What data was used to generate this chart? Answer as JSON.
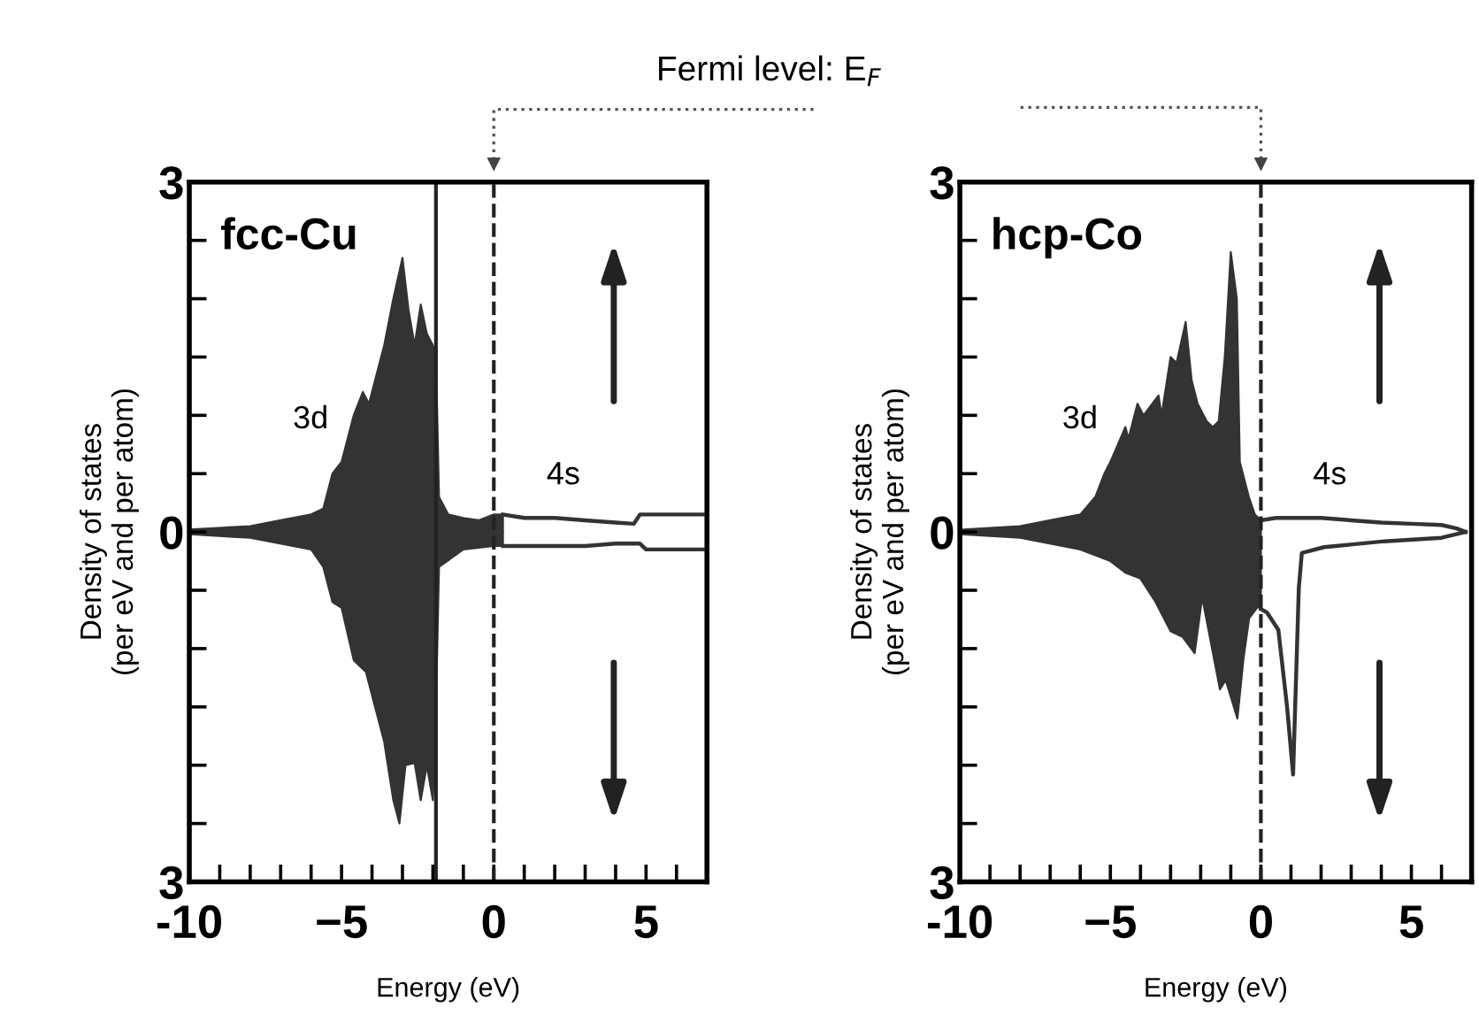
{
  "chart_data": [
    {
      "type": "area",
      "title": "fcc-Cu",
      "xlabel": "Energy (eV)",
      "ylabel": "Density of states\n(per eV and per atom)",
      "xlim": [
        -10,
        7
      ],
      "ylim": [
        -3,
        3
      ],
      "xticks": [
        -10,
        {
          "value": -9,
          "label": null
        },
        {
          "value": -8,
          "label": null
        },
        {
          "value": -7,
          "label": null
        },
        {
          "value": -6,
          "label": null
        },
        {
          "value": -5,
          "label": "−5"
        },
        {
          "value": -4,
          "label": null
        },
        {
          "value": -3,
          "label": null
        },
        {
          "value": -2,
          "label": null
        },
        {
          "value": -1,
          "label": null
        },
        0,
        {
          "value": 1,
          "label": null
        },
        {
          "value": 2,
          "label": null
        },
        {
          "value": 3,
          "label": null
        },
        {
          "value": 4,
          "label": null
        },
        5,
        {
          "value": 6,
          "label": null
        }
      ],
      "yticks": [
        {
          "value": -3,
          "label": "3"
        },
        {
          "value": -2.5,
          "label": null
        },
        {
          "value": -2,
          "label": null
        },
        {
          "value": -1.5,
          "label": null
        },
        {
          "value": -1,
          "label": null
        },
        {
          "value": -0.5,
          "label": null
        },
        0,
        {
          "value": 0.5,
          "label": null
        },
        {
          "value": 1,
          "label": null
        },
        {
          "value": 1.5,
          "label": null
        },
        {
          "value": 2,
          "label": null
        },
        {
          "value": 2.5,
          "label": null
        },
        3
      ],
      "grid": false,
      "ref_lines": [
        {
          "axis": "x",
          "value": -1.9,
          "line_style": "solid",
          "color": "#222222"
        },
        {
          "axis": "x",
          "value": 0,
          "line_style": "dashed",
          "color": "#222222"
        }
      ],
      "annotations": [
        "Fermi level: E$_{F}$",
        "3d",
        "4s"
      ],
      "series": [
        {
          "color": "#333333",
          "x": [
            -10,
            -8,
            -7,
            -6,
            -5.6,
            -5.3,
            -5,
            -4.6,
            -4.3,
            -4.1,
            -3.9,
            -3.6,
            -3.3,
            -3.0,
            -2.8,
            -2.6,
            -2.4,
            -2.2,
            -2.0,
            -1.9,
            -1.8,
            -1.5,
            -1,
            -0.5,
            0,
            0.3
          ],
          "values": [
            0.02,
            0.05,
            0.1,
            0.15,
            0.2,
            0.5,
            0.6,
            1.0,
            1.2,
            1.1,
            1.3,
            1.6,
            2.0,
            2.35,
            1.9,
            1.6,
            1.95,
            1.7,
            1.6,
            1.5,
            0.3,
            0.15,
            0.12,
            0.1,
            0.15,
            0.15
          ]
        },
        {
          "type": "line",
          "color": "#333333",
          "x": [
            0.3,
            1,
            2,
            3,
            4,
            4.6,
            4.8,
            5,
            7
          ],
          "values": [
            0.15,
            0.12,
            0.12,
            0.1,
            0.08,
            0.07,
            0.15,
            0.15,
            0.15
          ]
        },
        {
          "color": "#333333",
          "x": [
            -10,
            -8,
            -6,
            -5.6,
            -5.3,
            -5,
            -4.6,
            -4.2,
            -3.9,
            -3.6,
            -3.3,
            -3.1,
            -2.9,
            -2.6,
            -2.4,
            -2.2,
            -2.0,
            -1.9,
            -1.8,
            -1,
            0,
            0.3
          ],
          "values": [
            -0.02,
            -0.05,
            -0.15,
            -0.3,
            -0.6,
            -0.65,
            -1.1,
            -1.2,
            -1.5,
            -1.8,
            -2.3,
            -2.5,
            -2.0,
            -1.98,
            -2.3,
            -2.0,
            -2.3,
            -1.5,
            -0.3,
            -0.15,
            -0.12,
            -0.12
          ]
        },
        {
          "type": "line",
          "color": "#333333",
          "x": [
            0.3,
            1,
            2,
            3,
            4,
            4.8,
            5,
            7
          ],
          "values": [
            -0.12,
            -0.12,
            -0.12,
            -0.12,
            -0.1,
            -0.1,
            -0.15,
            -0.15
          ]
        }
      ]
    },
    {
      "type": "area",
      "title": "hcp-Co",
      "xlabel": "Energy (eV)",
      "ylabel": "Density of states\n(per eV and per atom)",
      "xlim": [
        -10,
        7
      ],
      "ylim": [
        -3,
        3
      ],
      "xticks": [
        -10,
        {
          "value": -9,
          "label": null
        },
        {
          "value": -8,
          "label": null
        },
        {
          "value": -7,
          "label": null
        },
        {
          "value": -6,
          "label": null
        },
        {
          "value": -5,
          "label": "−5"
        },
        {
          "value": -4,
          "label": null
        },
        {
          "value": -3,
          "label": null
        },
        {
          "value": -2,
          "label": null
        },
        {
          "value": -1,
          "label": null
        },
        0,
        {
          "value": 1,
          "label": null
        },
        {
          "value": 2,
          "label": null
        },
        {
          "value": 3,
          "label": null
        },
        {
          "value": 4,
          "label": null
        },
        5,
        {
          "value": 6,
          "label": null
        }
      ],
      "yticks": [
        {
          "value": -3,
          "label": "3"
        },
        {
          "value": -2.5,
          "label": null
        },
        {
          "value": -2,
          "label": null
        },
        {
          "value": -1.5,
          "label": null
        },
        {
          "value": -1,
          "label": null
        },
        {
          "value": -0.5,
          "label": null
        },
        0,
        {
          "value": 0.5,
          "label": null
        },
        {
          "value": 1,
          "label": null
        },
        {
          "value": 1.5,
          "label": null
        },
        {
          "value": 2,
          "label": null
        },
        {
          "value": 2.5,
          "label": null
        },
        3
      ],
      "grid": false,
      "ref_lines": [
        {
          "axis": "x",
          "value": 0,
          "line_style": "dashed",
          "color": "#222222"
        }
      ],
      "annotations": [
        "3d",
        "4s"
      ],
      "series": [
        {
          "color": "#333333",
          "x": [
            -10,
            -8,
            -7,
            -6,
            -5.5,
            -5.2,
            -5,
            -4.5,
            -4.4,
            -4.1,
            -3.9,
            -3.4,
            -3.3,
            -3.0,
            -2.8,
            -2.5,
            -2.3,
            -2.1,
            -1.8,
            -1.6,
            -1.4,
            -1.2,
            -1.0,
            -0.8,
            -0.7,
            -0.4,
            -0.2,
            0
          ],
          "values": [
            0.02,
            0.05,
            0.1,
            0.15,
            0.3,
            0.5,
            0.6,
            0.9,
            0.8,
            1.1,
            1.0,
            1.17,
            1.0,
            1.5,
            1.45,
            1.8,
            1.3,
            1.1,
            0.95,
            0.9,
            0.95,
            1.5,
            2.4,
            2.0,
            0.6,
            0.3,
            0.15,
            0.1
          ]
        },
        {
          "type": "line",
          "color": "#333333",
          "x": [
            0,
            0.5,
            1,
            2,
            3,
            4,
            5,
            6,
            6.5,
            6.8
          ],
          "values": [
            0.1,
            0.12,
            0.12,
            0.12,
            0.1,
            0.08,
            0.07,
            0.06,
            0.03,
            0
          ]
        },
        {
          "color": "#333333",
          "x": [
            -10,
            -8,
            -6,
            -5,
            -4.5,
            -4,
            -3.5,
            -3.0,
            -2.6,
            -2.2,
            -1.95,
            -1.36,
            -1.17,
            -0.78,
            -0.58,
            -0.39,
            -0.1,
            0
          ],
          "values": [
            -0.02,
            -0.05,
            -0.15,
            -0.25,
            -0.35,
            -0.4,
            -0.6,
            -0.85,
            -0.9,
            -1.04,
            -0.56,
            -1.35,
            -1.27,
            -1.6,
            -1.09,
            -0.74,
            -0.64,
            -0.66
          ]
        },
        {
          "type": "line",
          "color": "#333333",
          "x": [
            0,
            0.2,
            0.58,
            0.87,
            1.07,
            1.26,
            1.36,
            2.1,
            4.1,
            6,
            6.8
          ],
          "values": [
            -0.66,
            -0.69,
            -0.84,
            -1.5,
            -2.08,
            -0.48,
            -0.18,
            -0.13,
            -0.08,
            -0.05,
            0
          ]
        }
      ]
    }
  ]
}
